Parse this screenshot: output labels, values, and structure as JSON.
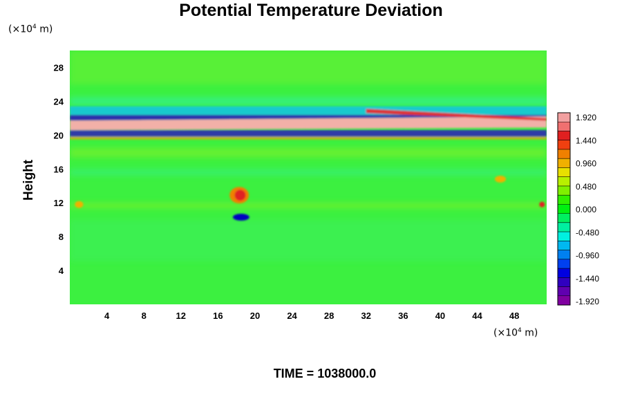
{
  "chart_data": {
    "type": "heatmap",
    "title": "Potential Temperature Deviation",
    "ylabel": "Height",
    "yunit": "(×10",
    "yunit_exp": "4",
    "yunit_end": " m)",
    "xunit": "(×10",
    "xunit_exp": "4",
    "xunit_end": " m)",
    "xlim": [
      0,
      51.5
    ],
    "ylim": [
      0,
      30
    ],
    "xticks": [
      "4",
      "8",
      "12",
      "16",
      "20",
      "24",
      "28",
      "32",
      "36",
      "40",
      "44",
      "48"
    ],
    "xtick_values": [
      4,
      8,
      12,
      16,
      20,
      24,
      28,
      32,
      36,
      40,
      44,
      48
    ],
    "yticks": [
      "4",
      "8",
      "12",
      "16",
      "20",
      "24",
      "28"
    ],
    "ytick_values": [
      4,
      8,
      12,
      16,
      20,
      24,
      28
    ],
    "colorbar": {
      "labels": [
        "1.920",
        "1.440",
        "0.960",
        "0.480",
        "0.000",
        "-0.480",
        "-0.960",
        "-1.440",
        "-1.920"
      ],
      "values": [
        1.92,
        1.44,
        0.96,
        0.48,
        0.0,
        -0.48,
        -0.96,
        -1.44,
        -1.92
      ],
      "colors": [
        "#f2a0a0",
        "#f07070",
        "#e02020",
        "#f04010",
        "#f08000",
        "#f0b000",
        "#e8e000",
        "#b8f000",
        "#80f000",
        "#30f000",
        "#00f010",
        "#00f060",
        "#00f0a0",
        "#00f0e0",
        "#00b8f0",
        "#0080f0",
        "#0040f0",
        "#0000e0",
        "#3000c0",
        "#6000b0",
        "#8000a0"
      ]
    },
    "field_colors": {
      "background": "#3cf040",
      "positive_band": "#f2b0a8",
      "negative_band": "#2a10c0"
    }
  },
  "time_label": "TIME = 1038000.0"
}
